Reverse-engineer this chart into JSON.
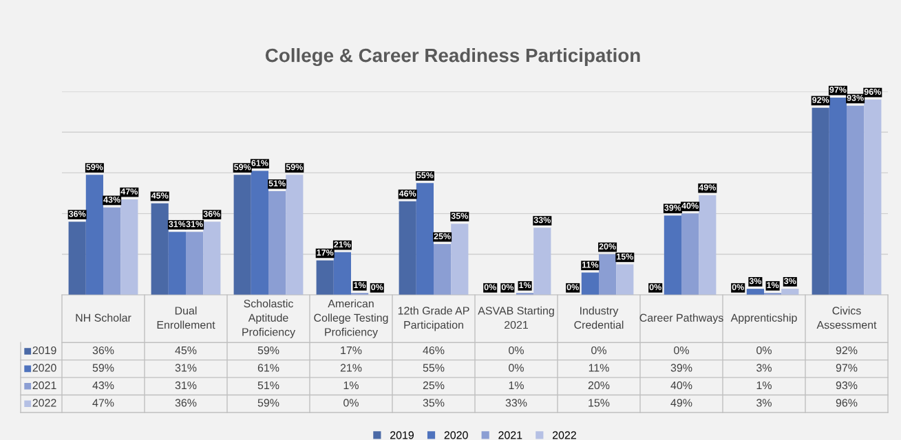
{
  "chart_data": {
    "type": "bar",
    "title": "College & Career Readiness Participation",
    "categories": [
      "NH Scholar",
      "Dual\nEnrollement",
      "Scholastic\nAptitude\nProficiency",
      "American\nCollege Testing\nProficiency",
      "12th Grade AP\nParticipation",
      "ASVAB Starting\n2021",
      "Industry\nCredential",
      "Career Pathways",
      "Apprenticship",
      "Civics\nAssessment"
    ],
    "series": [
      {
        "name": "2019",
        "color": "#4a69a6",
        "values": [
          36,
          45,
          59,
          17,
          46,
          0,
          0,
          0,
          0,
          92
        ],
        "value_labels": [
          "36%",
          "45%",
          "59%",
          "17%",
          "46%",
          "0%",
          "0%",
          "0%",
          "0%",
          "92%"
        ]
      },
      {
        "name": "2020",
        "color": "#4f73bd",
        "values": [
          59,
          31,
          61,
          21,
          55,
          0,
          11,
          39,
          3,
          97
        ],
        "value_labels": [
          "59%",
          "31%",
          "61%",
          "21%",
          "55%",
          "0%",
          "11%",
          "39%",
          "3%",
          "97%"
        ]
      },
      {
        "name": "2021",
        "color": "#8b9ed3",
        "values": [
          43,
          31,
          51,
          1,
          25,
          1,
          20,
          40,
          1,
          93
        ],
        "value_labels": [
          "43%",
          "31%",
          "51%",
          "1%",
          "25%",
          "1%",
          "20%",
          "40%",
          "1%",
          "93%"
        ]
      },
      {
        "name": "2022",
        "color": "#b5c0e4",
        "values": [
          47,
          36,
          59,
          0,
          35,
          33,
          15,
          49,
          3,
          96
        ],
        "value_labels": [
          "47%",
          "36%",
          "59%",
          "0%",
          "35%",
          "33%",
          "15%",
          "49%",
          "3%",
          "96%"
        ]
      }
    ],
    "ylim": [
      0,
      100
    ],
    "yticks": [
      {
        "value": 0,
        "label": null
      },
      {
        "value": 20,
        "label": null
      },
      {
        "value": 40,
        "label": null
      },
      {
        "value": 60,
        "label": null
      },
      {
        "value": 80,
        "label": null
      },
      {
        "value": 100,
        "label": null
      }
    ],
    "tick_labels": "x",
    "grid": "y",
    "legend": "bottom"
  }
}
